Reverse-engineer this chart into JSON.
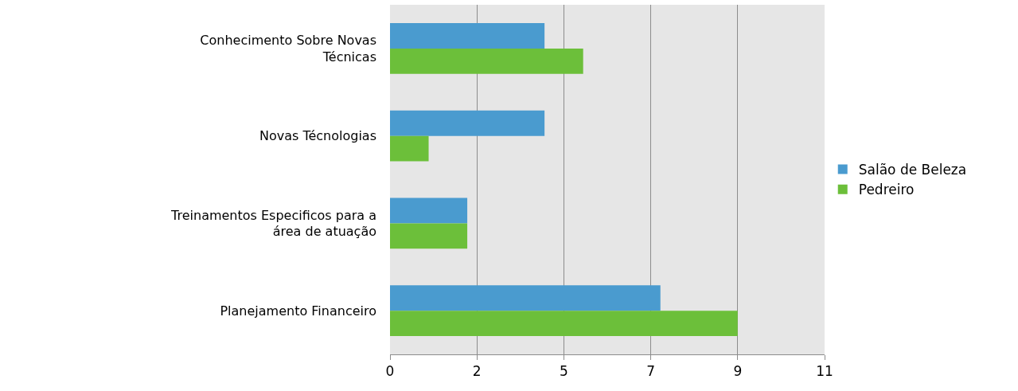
{
  "chart_data": {
    "type": "bar",
    "orientation": "horizontal",
    "categories": [
      "Conhecimento Sobre Novas Técnicas",
      "Novas Técnologias",
      "Treinamentos Especificos para a área de atuação",
      "Planejamento Financeiro"
    ],
    "series": [
      {
        "name": "Salão de Beleza",
        "color": "#4a9bcf",
        "values": [
          4,
          4,
          2,
          7
        ]
      },
      {
        "name": "Pedreiro",
        "color": "#6cbf3a",
        "values": [
          5,
          1,
          2,
          9
        ]
      }
    ],
    "xlim": [
      0,
      11.25
    ],
    "xticks": [
      0,
      {
        "value": 2.25,
        "label": "2"
      },
      {
        "value": 4.5,
        "label": "5"
      },
      {
        "value": 6.75,
        "label": "7"
      },
      9,
      {
        "value": 11.25,
        "label": "11"
      }
    ],
    "grid": "x",
    "legend": "right"
  }
}
